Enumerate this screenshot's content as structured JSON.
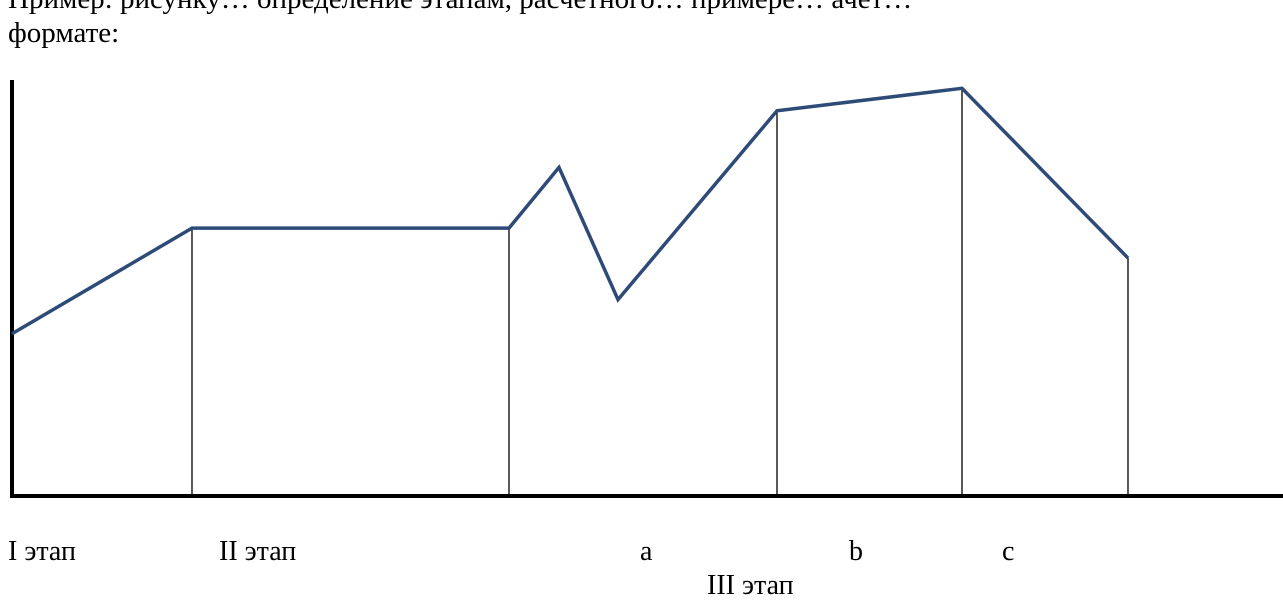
{
  "text": {
    "line1": "Пример: рисунку… определение этапам, расчётного… примере… ачет…",
    "line2": "формате:"
  },
  "chart_data": {
    "type": "line",
    "series": [
      {
        "color": "#2e4b78",
        "points": [
          {
            "x": 0,
            "y": 195
          },
          {
            "x": 180,
            "y": 322
          },
          {
            "x": 497,
            "y": 322
          },
          {
            "x": 547,
            "y": 395
          },
          {
            "x": 606,
            "y": 236
          },
          {
            "x": 765,
            "y": 463
          },
          {
            "x": 950,
            "y": 490
          },
          {
            "x": 1116,
            "y": 286
          }
        ]
      }
    ],
    "stage_boundaries": [
      180,
      497,
      765,
      950,
      1116
    ],
    "stage_labels": [
      "I этап",
      "II этап",
      "a",
      "b",
      "c",
      "III этап"
    ],
    "xlim": [
      0,
      1270
    ],
    "ylim": [
      0,
      500
    ],
    "axis_color": "#000000",
    "grid": false
  }
}
